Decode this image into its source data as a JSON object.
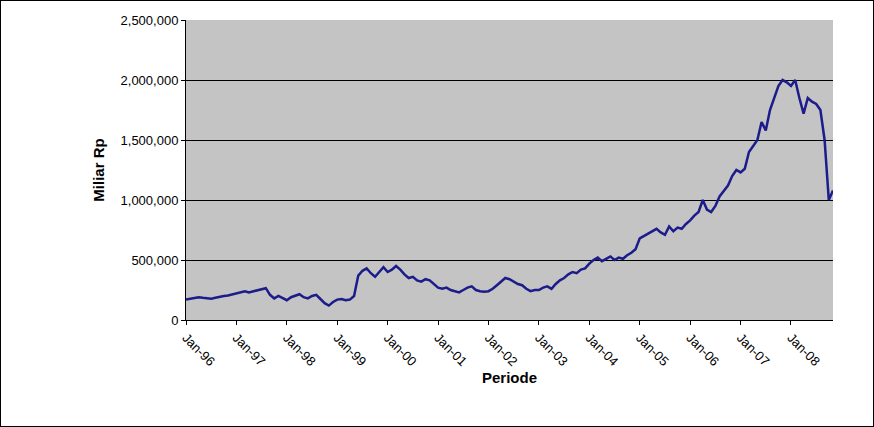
{
  "chart_data": {
    "type": "line",
    "x_label": "Periode",
    "y_label": "Miliar Rp",
    "categories": [
      "Jan-96",
      null,
      null,
      null,
      null,
      null,
      null,
      null,
      null,
      null,
      null,
      null,
      "Jan-97",
      null,
      null,
      null,
      null,
      null,
      null,
      null,
      null,
      null,
      null,
      null,
      "Jan-98",
      null,
      null,
      null,
      null,
      null,
      null,
      null,
      null,
      null,
      null,
      null,
      "Jan-99",
      null,
      null,
      null,
      null,
      null,
      null,
      null,
      null,
      null,
      null,
      null,
      "Jan-00",
      null,
      null,
      null,
      null,
      null,
      null,
      null,
      null,
      null,
      null,
      null,
      "Jan-01",
      null,
      null,
      null,
      null,
      null,
      null,
      null,
      null,
      null,
      null,
      null,
      "Jan-02",
      null,
      null,
      null,
      null,
      null,
      null,
      null,
      null,
      null,
      null,
      null,
      "Jan-03",
      null,
      null,
      null,
      null,
      null,
      null,
      null,
      null,
      null,
      null,
      null,
      "Jan-04",
      null,
      null,
      null,
      null,
      null,
      null,
      null,
      null,
      null,
      null,
      null,
      "Jan-05",
      null,
      null,
      null,
      null,
      null,
      null,
      null,
      null,
      null,
      null,
      null,
      "Jan-06",
      null,
      null,
      null,
      null,
      null,
      null,
      null,
      null,
      null,
      null,
      null,
      "Jan-07",
      null,
      null,
      null,
      null,
      null,
      null,
      null,
      null,
      null,
      null,
      null,
      "Jan-08",
      null,
      null,
      null,
      null,
      null,
      null,
      null,
      null,
      null,
      null
    ],
    "values": [
      170000,
      175000,
      185000,
      190000,
      185000,
      180000,
      178000,
      185000,
      195000,
      200000,
      205000,
      215000,
      225000,
      235000,
      240000,
      230000,
      240000,
      250000,
      255000,
      265000,
      210000,
      180000,
      200000,
      185000,
      165000,
      190000,
      200000,
      215000,
      190000,
      180000,
      200000,
      210000,
      175000,
      140000,
      120000,
      150000,
      170000,
      175000,
      165000,
      170000,
      200000,
      370000,
      410000,
      430000,
      390000,
      360000,
      400000,
      440000,
      400000,
      420000,
      450000,
      420000,
      380000,
      350000,
      360000,
      330000,
      320000,
      340000,
      330000,
      300000,
      270000,
      260000,
      270000,
      250000,
      240000,
      230000,
      250000,
      270000,
      280000,
      250000,
      240000,
      235000,
      240000,
      260000,
      290000,
      320000,
      350000,
      340000,
      320000,
      300000,
      290000,
      260000,
      240000,
      250000,
      250000,
      270000,
      280000,
      260000,
      300000,
      330000,
      350000,
      380000,
      400000,
      390000,
      420000,
      430000,
      470000,
      500000,
      520000,
      490000,
      510000,
      530000,
      500000,
      520000,
      510000,
      540000,
      560000,
      590000,
      680000,
      700000,
      720000,
      740000,
      760000,
      730000,
      710000,
      780000,
      740000,
      770000,
      760000,
      800000,
      830000,
      870000,
      900000,
      1000000,
      920000,
      900000,
      950000,
      1030000,
      1080000,
      1120000,
      1200000,
      1250000,
      1230000,
      1260000,
      1400000,
      1450000,
      1500000,
      1650000,
      1580000,
      1750000,
      1850000,
      1950000,
      2000000,
      1980000,
      1950000,
      2000000,
      1850000,
      1720000,
      1850000,
      1820000,
      1800000,
      1750000,
      1500000,
      1000000,
      1080000
    ],
    "color": "#1c1c8a",
    "ylim": [
      0,
      2500000
    ],
    "yticks": [
      0,
      {
        "value": 500000,
        "label": "500,000"
      },
      {
        "value": 1000000,
        "label": "1,000,000"
      },
      {
        "value": 1500000,
        "label": "1,500,000"
      },
      {
        "value": 2000000,
        "label": "2,000,000"
      },
      {
        "value": 2500000,
        "label": "2,500,000"
      }
    ],
    "grid": true
  }
}
